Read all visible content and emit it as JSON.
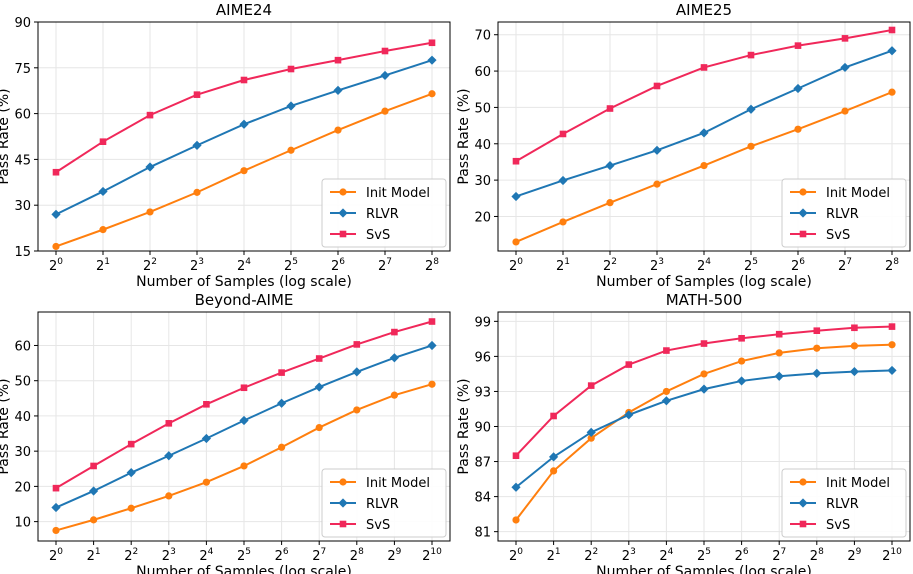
{
  "colors": {
    "init": "#ff7f0e",
    "rlvr": "#1f77b4",
    "svs": "#f0285a",
    "grid": "#e6e6e6",
    "axis": "#000000",
    "legend_border": "#cccccc"
  },
  "chart_data": [
    {
      "type": "line",
      "title": "AIME24",
      "xlabel": "Number of Samples (log scale)",
      "ylabel": "Pass Rate (%)",
      "x": [
        0,
        1,
        2,
        3,
        4,
        5,
        6,
        7,
        8
      ],
      "x_ticks": [
        "0",
        "1",
        "2",
        "3",
        "4",
        "5",
        "6",
        "7",
        "8"
      ],
      "x_tick_base": "2",
      "y_ticks": [
        15,
        30,
        45,
        60,
        75,
        90
      ],
      "y_tick_labels": [
        "15",
        "30",
        "45",
        "60",
        "75",
        "90"
      ],
      "ylim": [
        15,
        90
      ],
      "grid": true,
      "legend_position": "lower right",
      "series": [
        {
          "name": "Init Model",
          "color": "#ff7f0e",
          "marker": "circle",
          "values": [
            16.5,
            22.0,
            27.8,
            34.2,
            41.3,
            48.0,
            54.6,
            60.8,
            66.5
          ]
        },
        {
          "name": "RLVR",
          "color": "#1f77b4",
          "marker": "diamond",
          "values": [
            27.0,
            34.5,
            42.5,
            49.6,
            56.5,
            62.5,
            67.6,
            72.5,
            77.5
          ]
        },
        {
          "name": "SvS",
          "color": "#f0285a",
          "marker": "square",
          "values": [
            40.8,
            50.8,
            59.5,
            66.2,
            71.0,
            74.6,
            77.5,
            80.5,
            83.2
          ]
        }
      ]
    },
    {
      "type": "line",
      "title": "AIME25",
      "xlabel": "Number of Samples (log scale)",
      "ylabel": "Pass Rate (%)",
      "x": [
        0,
        1,
        2,
        3,
        4,
        5,
        6,
        7,
        8
      ],
      "x_ticks": [
        "0",
        "1",
        "2",
        "3",
        "4",
        "5",
        "6",
        "7",
        "8"
      ],
      "x_tick_base": "2",
      "y_ticks": [
        20,
        30,
        40,
        50,
        60,
        70
      ],
      "y_tick_labels": [
        "20",
        "30",
        "40",
        "50",
        "60",
        "70"
      ],
      "ylim": [
        10.5,
        73.5
      ],
      "grid": true,
      "legend_position": "lower right",
      "series": [
        {
          "name": "Init Model",
          "color": "#ff7f0e",
          "marker": "circle",
          "values": [
            13.0,
            18.5,
            23.8,
            28.9,
            34.0,
            39.3,
            44.0,
            49.0,
            54.2
          ]
        },
        {
          "name": "RLVR",
          "color": "#1f77b4",
          "marker": "diamond",
          "values": [
            25.5,
            29.9,
            34.0,
            38.2,
            43.0,
            49.5,
            55.2,
            61.0,
            65.6
          ]
        },
        {
          "name": "SvS",
          "color": "#f0285a",
          "marker": "square",
          "values": [
            35.2,
            42.7,
            49.7,
            55.9,
            61.0,
            64.4,
            67.0,
            69.0,
            71.3
          ]
        }
      ]
    },
    {
      "type": "line",
      "title": "Beyond-AIME",
      "xlabel": "Number of Samples (log scale)",
      "ylabel": "Pass Rate (%)",
      "x": [
        0,
        1,
        2,
        3,
        4,
        5,
        6,
        7,
        8,
        9,
        10
      ],
      "x_ticks": [
        "0",
        "1",
        "2",
        "3",
        "4",
        "5",
        "6",
        "7",
        "8",
        "9",
        "10"
      ],
      "x_tick_base": "2",
      "y_ticks": [
        10,
        20,
        30,
        40,
        50,
        60
      ],
      "y_tick_labels": [
        "10",
        "20",
        "30",
        "40",
        "50",
        "60"
      ],
      "ylim": [
        4.5,
        69.5
      ],
      "grid": true,
      "legend_position": "lower right",
      "series": [
        {
          "name": "Init Model",
          "color": "#ff7f0e",
          "marker": "circle",
          "values": [
            7.5,
            10.5,
            13.8,
            17.3,
            21.2,
            25.8,
            31.1,
            36.7,
            41.7,
            45.9,
            49.0
          ]
        },
        {
          "name": "RLVR",
          "color": "#1f77b4",
          "marker": "diamond",
          "values": [
            14.0,
            18.7,
            23.9,
            28.7,
            33.6,
            38.7,
            43.6,
            48.2,
            52.5,
            56.5,
            60.0
          ]
        },
        {
          "name": "SvS",
          "color": "#f0285a",
          "marker": "square",
          "values": [
            19.5,
            25.8,
            32.0,
            37.9,
            43.3,
            48.0,
            52.3,
            56.3,
            60.3,
            63.8,
            66.8
          ]
        }
      ]
    },
    {
      "type": "line",
      "title": "MATH-500",
      "xlabel": "Number of Samples (log scale)",
      "ylabel": "Pass Rate (%)",
      "x": [
        0,
        1,
        2,
        3,
        4,
        5,
        6,
        7,
        8,
        9,
        10
      ],
      "x_ticks": [
        "0",
        "1",
        "2",
        "3",
        "4",
        "5",
        "6",
        "7",
        "8",
        "9",
        "10"
      ],
      "x_tick_base": "2",
      "y_ticks": [
        81,
        84,
        87,
        90,
        93,
        96,
        99
      ],
      "y_tick_labels": [
        "81",
        "84",
        "87",
        "90",
        "93",
        "96",
        "99"
      ],
      "ylim": [
        80.2,
        99.8
      ],
      "grid": true,
      "legend_position": "lower right",
      "series": [
        {
          "name": "Init Model",
          "color": "#ff7f0e",
          "marker": "circle",
          "values": [
            82.0,
            86.2,
            89.0,
            91.2,
            93.0,
            94.5,
            95.6,
            96.3,
            96.7,
            96.9,
            97.0
          ]
        },
        {
          "name": "RLVR",
          "color": "#1f77b4",
          "marker": "diamond",
          "values": [
            84.8,
            87.4,
            89.5,
            91.0,
            92.2,
            93.2,
            93.9,
            94.3,
            94.55,
            94.7,
            94.8
          ]
        },
        {
          "name": "SvS",
          "color": "#f0285a",
          "marker": "square",
          "values": [
            87.5,
            90.9,
            93.5,
            95.3,
            96.5,
            97.1,
            97.55,
            97.9,
            98.2,
            98.45,
            98.55
          ]
        }
      ]
    }
  ]
}
